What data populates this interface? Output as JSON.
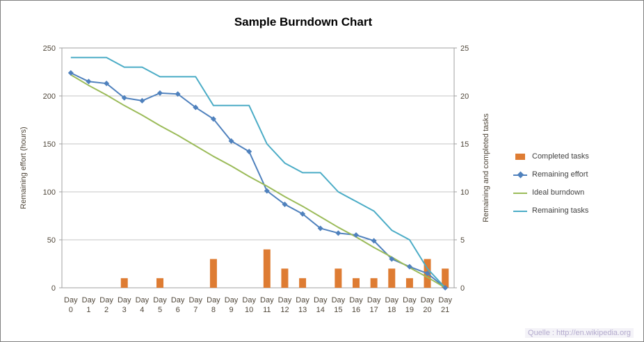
{
  "source_text": "Quelle : http://en.wikipedia.org",
  "chart_data": {
    "type": "combo",
    "title": "Sample Burndown Chart",
    "legend_position": "right",
    "grid": true,
    "x_categories": [
      "Day 0",
      "Day 1",
      "Day 2",
      "Day 3",
      "Day 4",
      "Day 5",
      "Day 6",
      "Day 7",
      "Day 8",
      "Day 9",
      "Day 10",
      "Day 11",
      "Day 12",
      "Day 13",
      "Day 14",
      "Day 15",
      "Day 16",
      "Day 17",
      "Day 18",
      "Day 19",
      "Day 20",
      "Day 21"
    ],
    "left_axis": {
      "label": "Remaining effort (hours)",
      "min": 0,
      "max": 250,
      "step": 50
    },
    "right_axis": {
      "label": "Remaining and completed tasks",
      "min": 0,
      "max": 25,
      "step": 5
    },
    "style": {
      "grid_color": "#c6c6c6",
      "border_color": "#a0a0a0",
      "label_color": "#4f4639",
      "title_color": "#000000",
      "legend_text_color": "#3f3f3f",
      "source_text_color": "#b3aacd"
    },
    "series": [
      {
        "name": "Completed tasks",
        "type": "bar",
        "axis": "right",
        "color": "#de7c33",
        "values": [
          0,
          0,
          0,
          1,
          0,
          1,
          0,
          0,
          3,
          0,
          0,
          4,
          2,
          1,
          0,
          2,
          1,
          1,
          2,
          1,
          3,
          2
        ]
      },
      {
        "name": "Remaining effort",
        "type": "line",
        "marker": "diamond",
        "axis": "left",
        "color": "#4f81bd",
        "values": [
          224,
          215,
          213,
          198,
          195,
          203,
          202,
          188,
          176,
          153,
          142,
          101,
          87,
          77,
          62,
          57,
          55,
          49,
          30,
          22,
          15,
          0
        ]
      },
      {
        "name": "Ideal burndown",
        "type": "line",
        "axis": "left",
        "color": "#9bbb59",
        "values": [
          222,
          211,
          201,
          190,
          180,
          169,
          159,
          148,
          137,
          127,
          116,
          106,
          95,
          85,
          74,
          63,
          53,
          42,
          32,
          21,
          11,
          0
        ]
      },
      {
        "name": "Remaining tasks",
        "type": "line",
        "axis": "right",
        "color": "#4bacc6",
        "values": [
          24,
          24,
          24,
          23,
          23,
          22,
          22,
          22,
          19,
          19,
          19,
          15,
          13,
          12,
          12,
          10,
          9,
          8,
          6,
          5,
          2,
          0
        ]
      }
    ]
  }
}
